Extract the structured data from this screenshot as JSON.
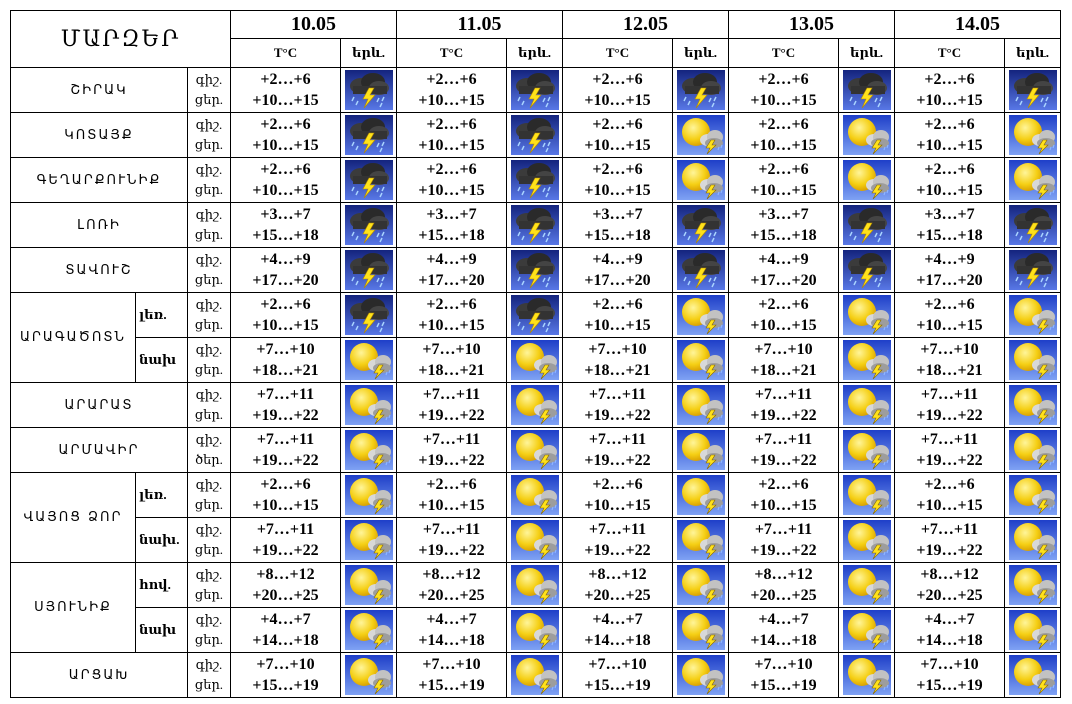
{
  "header": {
    "title": "ՄԱՐԶԵՐ",
    "dates": [
      {
        "date": "10.05",
        "temp_label": "T°C",
        "icon_label": "երև."
      },
      {
        "date": "11.05",
        "temp_label": "T°C",
        "icon_label": "երև."
      },
      {
        "date": "12.05",
        "temp_label": "T°C",
        "icon_label": "երև."
      },
      {
        "date": "13.05",
        "temp_label": "T°C",
        "icon_label": "երև."
      },
      {
        "date": "14.05",
        "temp_label": "T°C",
        "icon_label": "երև."
      }
    ]
  },
  "rows": [
    {
      "region": "ՇԻՐԱԿ",
      "parts": [
        {
          "night_label": "գիշ.",
          "day_label": "ցեր.",
          "night": [
            "+2…+6",
            "+2…+6",
            "+2…+6",
            "+2…+6",
            "+2…+6"
          ],
          "day": [
            "+10…+15",
            "+10…+15",
            "+10…+15",
            "+10…+15",
            "+10…+15"
          ]
        }
      ]
    },
    {
      "region": "ԿՈՏԱՅՔ",
      "parts": [
        {
          "night_label": "գիշ.",
          "day_label": "ցեր.",
          "night": [
            "+2…+6",
            "+2…+6",
            "+2…+6",
            "+2…+6",
            "+2…+6"
          ],
          "day": [
            "+10…+15",
            "+10…+15",
            "+10…+15",
            "+10…+15",
            "+10…+15"
          ]
        }
      ]
    },
    {
      "region": "ԳԵՂԱՐՔՈՒՆԻՔ",
      "parts": [
        {
          "night_label": "գիշ.",
          "day_label": "ցեր.",
          "night": [
            "+2…+6",
            "+2…+6",
            "+2…+6",
            "+2…+6",
            "+2…+6"
          ],
          "day": [
            "+10…+15",
            "+10…+15",
            "+10…+15",
            "+10…+15",
            "+10…+15"
          ]
        }
      ]
    },
    {
      "region": "ԼՈՌԻ",
      "parts": [
        {
          "night_label": "գիշ.",
          "day_label": "ցեր.",
          "night": [
            "+3…+7",
            "+3…+7",
            "+3…+7",
            "+3…+7",
            "+3…+7"
          ],
          "day": [
            "+15…+18",
            "+15…+18",
            "+15…+18",
            "+15…+18",
            "+15…+18"
          ]
        }
      ]
    },
    {
      "region": "ՏԱՎՈՒՇ",
      "parts": [
        {
          "night_label": "գիշ.",
          "day_label": "ցեր.",
          "night": [
            "+4…+9",
            "+4…+9",
            "+4…+9",
            "+4…+9",
            "+4…+9"
          ],
          "day": [
            "+17…+20",
            "+17…+20",
            "+17…+20",
            "+17…+20",
            "+17…+20"
          ]
        }
      ]
    },
    {
      "region": "ԱՐԱԳԱԾՈՏՆ",
      "parts": [
        {
          "zone": "լեռ.",
          "night_label": "գիշ.",
          "day_label": "ցեր.",
          "night": [
            "+2…+6",
            "+2…+6",
            "+2…+6",
            "+2…+6",
            "+2…+6"
          ],
          "day": [
            "+10…+15",
            "+10…+15",
            "+10…+15",
            "+10…+15",
            "+10…+15"
          ]
        },
        {
          "zone": "նախ",
          "night_label": "գիշ.",
          "day_label": "ցեր.",
          "night": [
            "+7…+10",
            "+7…+10",
            "+7…+10",
            "+7…+10",
            "+7…+10"
          ],
          "day": [
            "+18…+21",
            "+18…+21",
            "+18…+21",
            "+18…+21",
            "+18…+21"
          ]
        }
      ]
    },
    {
      "region": "ԱՐԱՐԱՏ",
      "parts": [
        {
          "night_label": "գիշ.",
          "day_label": "ցեր.",
          "night": [
            "+7…+11",
            "+7…+11",
            "+7…+11",
            "+7…+11",
            "+7…+11"
          ],
          "day": [
            "+19…+22",
            "+19…+22",
            "+19…+22",
            "+19…+22",
            "+19…+22"
          ]
        }
      ]
    },
    {
      "region": "ԱՐՄԱՎԻՐ",
      "parts": [
        {
          "night_label": "գիշ.",
          "day_label": "ծեր.",
          "night": [
            "+7…+11",
            "+7…+11",
            "+7…+11",
            "+7…+11",
            "+7…+11"
          ],
          "day": [
            "+19…+22",
            "+19…+22",
            "+19…+22",
            "+19…+22",
            "+19…+22"
          ]
        }
      ]
    },
    {
      "region": "ՎԱՅՈՑ ՁՈՐ",
      "parts": [
        {
          "zone": "լեռ.",
          "night_label": "գիշ.",
          "day_label": "ցեր.",
          "night": [
            "+2…+6",
            "+2…+6",
            "+2…+6",
            "+2…+6",
            "+2…+6"
          ],
          "day": [
            "+10…+15",
            "+10…+15",
            "+10…+15",
            "+10…+15",
            "+10…+15"
          ]
        },
        {
          "zone": "նախ.",
          "night_label": "գիշ.",
          "day_label": "ցեր.",
          "night": [
            "+7…+11",
            "+7…+11",
            "+7…+11",
            "+7…+11",
            "+7…+11"
          ],
          "day": [
            "+19…+22",
            "+19…+22",
            "+19…+22",
            "+19…+22",
            "+19…+22"
          ]
        }
      ]
    },
    {
      "region": "ՍՅՈՒՆԻՔ",
      "parts": [
        {
          "zone": "հով.",
          "night_label": "գիշ.",
          "day_label": "ցեր.",
          "night": [
            "+8…+12",
            "+8…+12",
            "+8…+12",
            "+8…+12",
            "+8…+12"
          ],
          "day": [
            "+20…+25",
            "+20…+25",
            "+20…+25",
            "+20…+25",
            "+20…+25"
          ]
        },
        {
          "zone": "նախ",
          "night_label": "գիշ.",
          "day_label": "ցեր.",
          "night": [
            "+4…+7",
            "+4…+7",
            "+4…+7",
            "+4…+7",
            "+4…+7"
          ],
          "day": [
            "+14…+18",
            "+14…+18",
            "+14…+18",
            "+14…+18",
            "+14…+18"
          ]
        }
      ]
    },
    {
      "region": "ԱՐՑԱԽ",
      "parts": [
        {
          "night_label": "գիշ.",
          "day_label": "ցեր.",
          "night": [
            "+7…+10",
            "+7…+10",
            "+7…+10",
            "+7…+10",
            "+7…+10"
          ],
          "day": [
            "+15…+19",
            "+15…+19",
            "+15…+19",
            "+15…+19",
            "+15…+19"
          ]
        }
      ]
    }
  ]
}
